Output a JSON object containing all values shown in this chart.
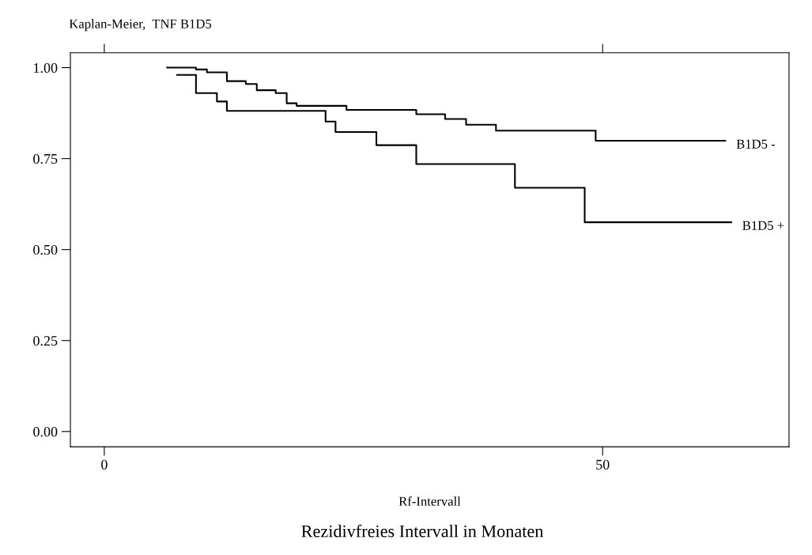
{
  "chart_data": {
    "type": "step",
    "title": "Kaplan-Meier,  TNF B1D5",
    "xlabel": "Rf-Intervall",
    "annotations": [
      "Rezidivfreies Intervall in Monaten"
    ],
    "xlim": [
      -3.4,
      68.7
    ],
    "ylim": [
      -0.042,
      1.041
    ],
    "xticks": [
      0,
      50
    ],
    "yticks": [
      {
        "value": 0,
        "label": "0.00"
      },
      {
        "value": 0.25,
        "label": "0.25"
      },
      {
        "value": 0.5,
        "label": "0.50"
      },
      {
        "value": 0.75,
        "label": "0.75"
      },
      {
        "value": 1,
        "label": "1.00"
      }
    ],
    "grid": false,
    "legend": false,
    "line_style": "solid",
    "marker": "none",
    "series": [
      {
        "name": "B1D5 -",
        "color": "#000000",
        "x": [
          6.3,
          9.2,
          10.3,
          12.3,
          14.2,
          15.3,
          17.2,
          18.3,
          19.3,
          24.3,
          31.3,
          34.2,
          36.3,
          39.3,
          49.3,
          62.3
        ],
        "values": [
          1.0,
          0.995,
          0.987,
          0.963,
          0.955,
          0.938,
          0.93,
          0.902,
          0.895,
          0.884,
          0.872,
          0.859,
          0.843,
          0.827,
          0.799,
          0.799
        ]
      },
      {
        "name": "B1D5 +",
        "color": "#000000",
        "x": [
          7.3,
          9.2,
          11.3,
          12.3,
          22.2,
          23.2,
          27.3,
          31.3,
          41.2,
          48.2,
          62.9
        ],
        "values": [
          0.98,
          0.93,
          0.907,
          0.881,
          0.852,
          0.823,
          0.787,
          0.735,
          0.67,
          0.575,
          0.575
        ]
      }
    ]
  }
}
